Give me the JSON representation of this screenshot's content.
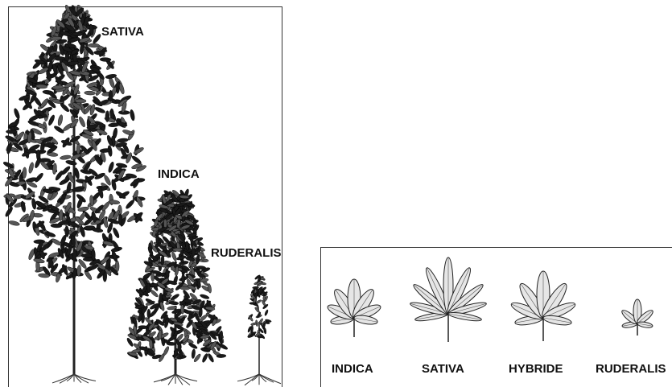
{
  "plants": [
    {
      "label": "SATIVA"
    },
    {
      "label": "INDICA"
    },
    {
      "label": "RUDERALIS"
    }
  ],
  "leaves": [
    {
      "label": "INDICA"
    },
    {
      "label": "SATIVA"
    },
    {
      "label": "HYBRIDE"
    },
    {
      "label": "RUDERALIS"
    }
  ]
}
